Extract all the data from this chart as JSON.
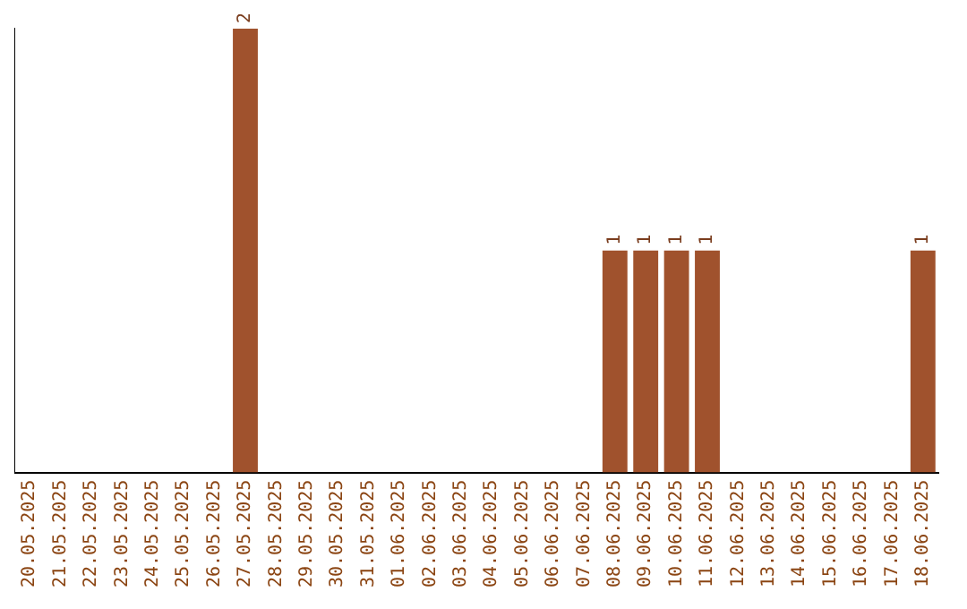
{
  "chart_data": {
    "type": "bar",
    "categories": [
      "20.05.2025",
      "21.05.2025",
      "22.05.2025",
      "23.05.2025",
      "24.05.2025",
      "25.05.2025",
      "26.05.2025",
      "27.05.2025",
      "28.05.2025",
      "29.05.2025",
      "30.05.2025",
      "31.05.2025",
      "01.06.2025",
      "02.06.2025",
      "03.06.2025",
      "04.06.2025",
      "05.06.2025",
      "06.06.2025",
      "07.06.2025",
      "08.06.2025",
      "09.06.2025",
      "10.06.2025",
      "11.06.2025",
      "12.06.2025",
      "13.06.2025",
      "14.06.2025",
      "15.06.2025",
      "16.06.2025",
      "17.06.2025",
      "18.06.2025"
    ],
    "values": [
      0,
      0,
      0,
      0,
      0,
      0,
      0,
      2,
      0,
      0,
      0,
      0,
      0,
      0,
      0,
      0,
      0,
      0,
      0,
      1,
      1,
      1,
      1,
      0,
      0,
      0,
      0,
      0,
      0,
      1
    ],
    "value_labels": [
      null,
      null,
      null,
      null,
      null,
      null,
      null,
      "2",
      null,
      null,
      null,
      null,
      null,
      null,
      null,
      null,
      null,
      null,
      null,
      "1",
      "1",
      "1",
      "1",
      null,
      null,
      null,
      null,
      null,
      null,
      "1"
    ],
    "color": "#a0522d",
    "grid": false,
    "legend": false,
    "tick_labels": "x"
  }
}
